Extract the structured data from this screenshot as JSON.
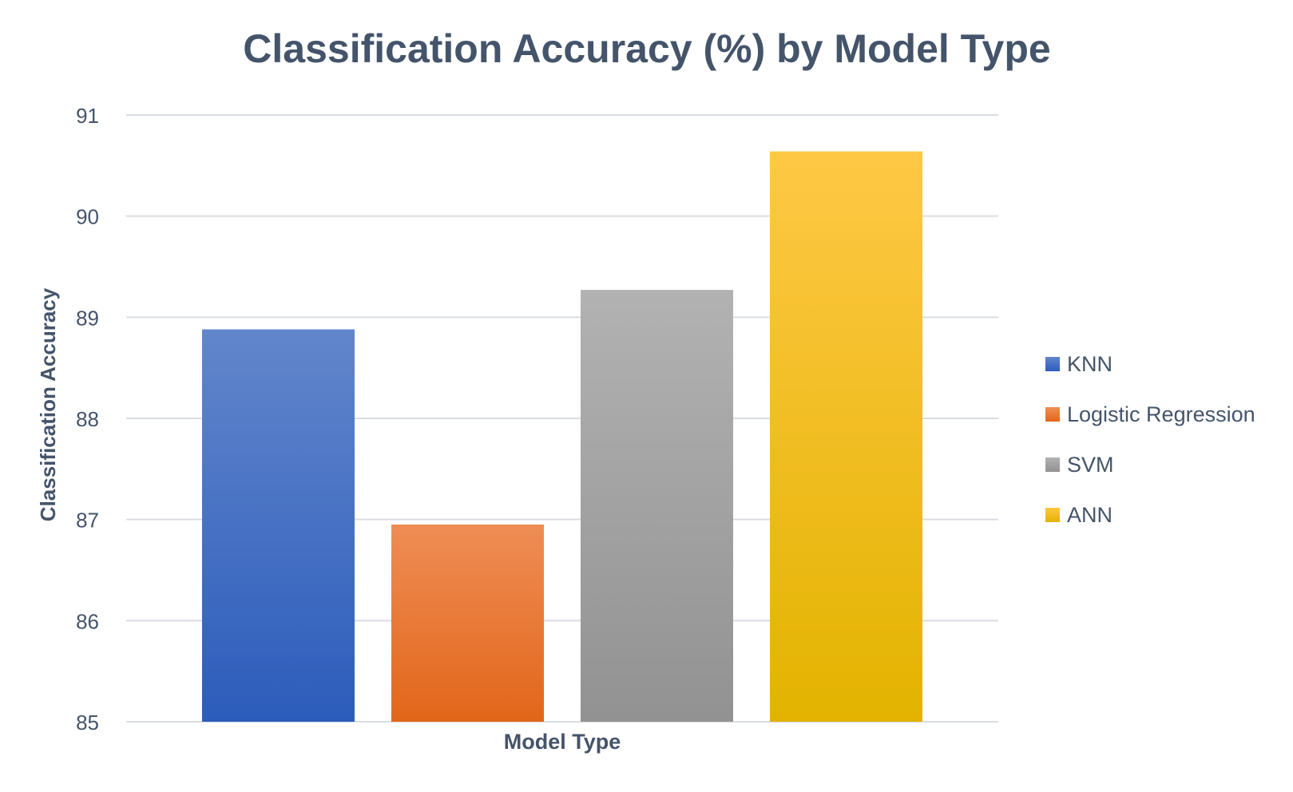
{
  "chart_data": {
    "type": "bar",
    "title": "Classification Accuracy (%) by Model Type",
    "xlabel": "Model Type",
    "ylabel": "Classification Accuracy",
    "ylim": [
      85,
      91
    ],
    "yticks": [
      85,
      86,
      87,
      88,
      89,
      90,
      91
    ],
    "grid": true,
    "legend_position": "right",
    "series": [
      {
        "name": "KNN",
        "values": [
          88.88
        ],
        "color_top": "#6286cc",
        "color_bottom": "#2c5cbb"
      },
      {
        "name": "Logistic Regression",
        "values": [
          86.95
        ],
        "color_top": "#ef8d55",
        "color_bottom": "#e2661a"
      },
      {
        "name": "SVM",
        "values": [
          89.27
        ],
        "color_top": "#b2b2b2",
        "color_bottom": "#929292"
      },
      {
        "name": "ANN",
        "values": [
          90.64
        ],
        "color_top": "#ffc845",
        "color_bottom": "#e3b300"
      }
    ],
    "text_color": "#44546a",
    "grid_color": "#d9dde3"
  }
}
